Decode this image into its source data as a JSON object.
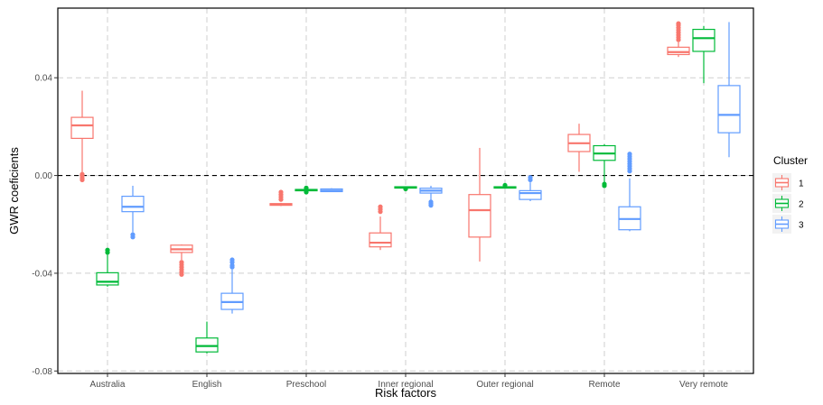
{
  "chart_data": {
    "type": "boxplot",
    "xlabel": "Risk factors",
    "ylabel": "GWR coeficients",
    "ylim": [
      -0.081,
      0.0685
    ],
    "yticks": [
      -0.08,
      -0.04,
      0.0,
      0.04
    ],
    "ytick_labels": [
      "-0.08",
      "-0.04",
      "0.00",
      "0.04"
    ],
    "reference_line_y": 0.0,
    "grid": true,
    "legend": {
      "title": "Cluster",
      "position": "right"
    },
    "categories": [
      "Australia",
      "English",
      "Preschool",
      "Inner regional",
      "Outer regional",
      "Remote",
      "Very remote"
    ],
    "series": [
      {
        "name": "1",
        "color": "#F8766D",
        "boxes": [
          {
            "lower_whisker": 0.0008,
            "q1": 0.0152,
            "median": 0.0205,
            "q3": 0.0238,
            "upper_whisker": 0.0347,
            "outliers": [
              0.0,
              -0.001,
              -0.0018,
              0.0005
            ]
          },
          {
            "lower_whisker": -0.0345,
            "q1": -0.0315,
            "median": -0.0302,
            "q3": -0.0285,
            "upper_whisker": -0.0282,
            "outliers": [
              -0.0355,
              -0.0365,
              -0.0375,
              -0.0385,
              -0.0395,
              -0.0405
            ]
          },
          {
            "lower_whisker": -0.0125,
            "q1": -0.0122,
            "median": -0.0118,
            "q3": -0.0115,
            "upper_whisker": -0.0112,
            "outliers": [
              -0.0098,
              -0.0088,
              -0.0078,
              -0.0068
            ]
          },
          {
            "lower_whisker": -0.0305,
            "q1": -0.0292,
            "median": -0.0275,
            "q3": -0.0235,
            "upper_whisker": -0.0168,
            "outliers": [
              -0.0148,
              -0.0138,
              -0.0128
            ]
          },
          {
            "lower_whisker": -0.0352,
            "q1": -0.0252,
            "median": -0.0142,
            "q3": -0.0078,
            "upper_whisker": 0.0113,
            "outliers": []
          },
          {
            "lower_whisker": 0.0015,
            "q1": 0.0098,
            "median": 0.0132,
            "q3": 0.0168,
            "upper_whisker": 0.0212,
            "outliers": []
          },
          {
            "lower_whisker": 0.0485,
            "q1": 0.0495,
            "median": 0.0505,
            "q3": 0.0525,
            "upper_whisker": 0.0545,
            "outliers": [
              0.0555,
              0.0565,
              0.0575,
              0.0585,
              0.0595,
              0.0605,
              0.0615,
              0.0622
            ]
          }
        ]
      },
      {
        "name": "2",
        "color": "#00BA38",
        "boxes": [
          {
            "lower_whisker": -0.0455,
            "q1": -0.0448,
            "median": -0.0435,
            "q3": -0.0398,
            "upper_whisker": -0.0325,
            "outliers": [
              -0.0305,
              -0.0315
            ]
          },
          {
            "lower_whisker": -0.0728,
            "q1": -0.0722,
            "median": -0.0698,
            "q3": -0.0665,
            "upper_whisker": -0.0598,
            "outliers": []
          },
          {
            "lower_whisker": -0.0065,
            "q1": -0.0062,
            "median": -0.006,
            "q3": -0.0057,
            "upper_whisker": -0.0054,
            "outliers": [
              -0.0068,
              -0.0051
            ]
          },
          {
            "lower_whisker": -0.0052,
            "q1": -0.005,
            "median": -0.0048,
            "q3": -0.0046,
            "upper_whisker": -0.0044,
            "outliers": [
              -0.0055
            ]
          },
          {
            "lower_whisker": -0.0052,
            "q1": -0.005,
            "median": -0.0048,
            "q3": -0.0046,
            "upper_whisker": -0.0043,
            "outliers": [
              -0.004
            ]
          },
          {
            "lower_whisker": -0.0028,
            "q1": 0.0062,
            "median": 0.009,
            "q3": 0.0122,
            "upper_whisker": 0.0128,
            "outliers": [
              -0.0035,
              -0.0042
            ]
          },
          {
            "lower_whisker": 0.0378,
            "q1": 0.0508,
            "median": 0.0562,
            "q3": 0.0598,
            "upper_whisker": 0.0612,
            "outliers": []
          }
        ]
      },
      {
        "name": "3",
        "color": "#619CFF",
        "boxes": [
          {
            "lower_whisker": -0.0232,
            "q1": -0.0148,
            "median": -0.0128,
            "q3": -0.0085,
            "upper_whisker": -0.0042,
            "outliers": [
              -0.0242,
              -0.0252
            ]
          },
          {
            "lower_whisker": -0.0565,
            "q1": -0.0548,
            "median": -0.0518,
            "q3": -0.0482,
            "upper_whisker": -0.0385,
            "outliers": [
              -0.0345,
              -0.0355,
              -0.0368,
              -0.0375
            ]
          },
          {
            "lower_whisker": -0.0068,
            "q1": -0.0066,
            "median": -0.0062,
            "q3": -0.0055,
            "upper_whisker": -0.0052,
            "outliers": []
          },
          {
            "lower_whisker": -0.0102,
            "q1": -0.0072,
            "median": -0.0062,
            "q3": -0.0052,
            "upper_whisker": -0.0042,
            "outliers": [
              -0.0108,
              -0.0115,
              -0.0122
            ]
          },
          {
            "lower_whisker": -0.0105,
            "q1": -0.0098,
            "median": -0.0072,
            "q3": -0.0062,
            "upper_whisker": -0.0028,
            "outliers": [
              -0.0018,
              -0.0008
            ]
          },
          {
            "lower_whisker": -0.0228,
            "q1": -0.0222,
            "median": -0.0178,
            "q3": -0.0128,
            "upper_whisker": -0.0012,
            "outliers": [
              0.0018,
              0.0028,
              0.0038,
              0.0048,
              0.0058,
              0.0068,
              0.0078,
              0.0088
            ]
          },
          {
            "lower_whisker": 0.0075,
            "q1": 0.0175,
            "median": 0.0248,
            "q3": 0.0368,
            "upper_whisker": 0.0628,
            "outliers": []
          }
        ]
      }
    ]
  }
}
